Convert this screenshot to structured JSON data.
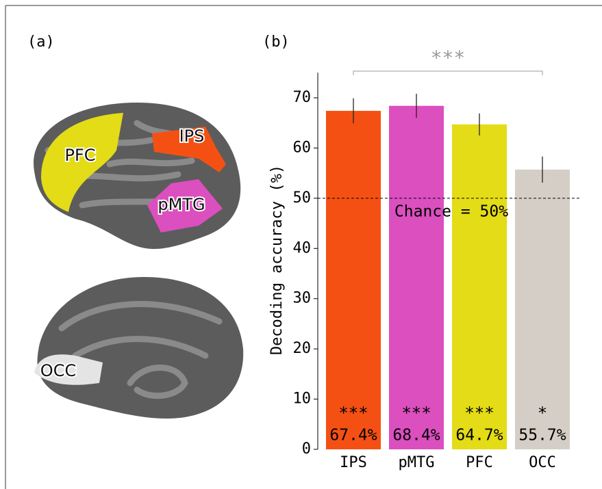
{
  "panel_a": {
    "label": "(a)",
    "regions": [
      "PFC",
      "IPS",
      "pMTG",
      "OCC"
    ]
  },
  "chart_data": {
    "type": "bar",
    "panel_label": "(b)",
    "y_label": "Decoding accuracy (%)",
    "categories": [
      "IPS",
      "pMTG",
      "PFC",
      "OCC"
    ],
    "values": [
      67.4,
      68.4,
      64.7,
      55.7
    ],
    "value_labels": [
      "67.4%",
      "68.4%",
      "64.7%",
      "55.7%"
    ],
    "errors": [
      2.5,
      2.4,
      2.2,
      2.6
    ],
    "stars": [
      "***",
      "***",
      "***",
      "*"
    ],
    "colors": [
      "#f55014",
      "#db4fbf",
      "#e3dc16",
      "#d4cec6"
    ],
    "chance": {
      "value": 50,
      "label": "Chance = 50%"
    },
    "bracket_label": "***",
    "ylim": [
      0,
      75
    ],
    "yticks": [
      0,
      10,
      20,
      30,
      40,
      50,
      60,
      70
    ]
  }
}
